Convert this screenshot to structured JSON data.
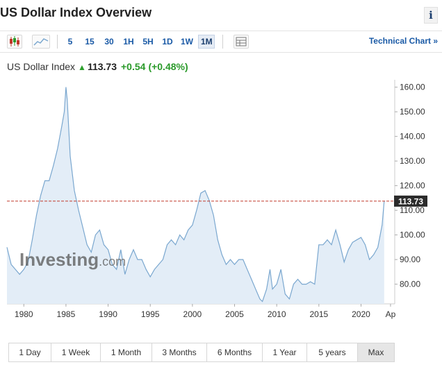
{
  "header": {
    "title": "US Dollar Index Overview",
    "info_label": "i"
  },
  "toolbar": {
    "intervals": [
      {
        "label": "5",
        "active": false
      },
      {
        "label": "15",
        "active": false
      },
      {
        "label": "30",
        "active": false
      },
      {
        "label": "1H",
        "active": false
      },
      {
        "label": "5H",
        "active": false
      },
      {
        "label": "1D",
        "active": false
      },
      {
        "label": "1W",
        "active": false
      },
      {
        "label": "1M",
        "active": true
      }
    ],
    "technical_chart": "Technical Chart »"
  },
  "quote": {
    "name": "US Dollar Index",
    "arrow": "▲",
    "last": "113.73",
    "change": "+0.54",
    "change_pct": "(+0.48%)"
  },
  "chart_data": {
    "type": "area",
    "watermark": "Investing.com",
    "x_ticks": [
      "1980",
      "1985",
      "1990",
      "1995",
      "2000",
      "2005",
      "2010",
      "2015",
      "2020",
      "Ap"
    ],
    "y_ticks": [
      "80.00",
      "90.00",
      "100.00",
      "110.00",
      "120.00",
      "130.00",
      "140.00",
      "150.00",
      "160.00"
    ],
    "xlim": [
      1978,
      2024
    ],
    "ylim": [
      72,
      163
    ],
    "last_price": 113.73,
    "last_price_label": "113.73",
    "colors": {
      "line": "#7aa7cf",
      "fill": "#e3edf7",
      "price_line": "#c0392b",
      "label_bg": "#2b2b2b"
    },
    "x": [
      1978.0,
      1978.5,
      1979.0,
      1979.5,
      1980.0,
      1980.5,
      1981.0,
      1981.5,
      1982.0,
      1982.5,
      1983.0,
      1983.5,
      1984.0,
      1984.5,
      1984.8,
      1985.0,
      1985.15,
      1985.5,
      1986.0,
      1986.5,
      1987.0,
      1987.5,
      1988.0,
      1988.5,
      1989.0,
      1989.5,
      1990.0,
      1990.5,
      1991.0,
      1991.5,
      1992.0,
      1992.5,
      1993.0,
      1993.5,
      1994.0,
      1994.5,
      1995.0,
      1995.5,
      1996.0,
      1996.5,
      1997.0,
      1997.5,
      1998.0,
      1998.5,
      1999.0,
      1999.5,
      2000.0,
      2000.5,
      2001.0,
      2001.5,
      2002.0,
      2002.5,
      2003.0,
      2003.5,
      2004.0,
      2004.5,
      2005.0,
      2005.5,
      2006.0,
      2006.5,
      2007.0,
      2007.5,
      2008.0,
      2008.3,
      2008.8,
      2009.2,
      2009.5,
      2010.0,
      2010.5,
      2011.0,
      2011.5,
      2012.0,
      2012.5,
      2013.0,
      2013.5,
      2014.0,
      2014.5,
      2015.0,
      2015.5,
      2016.0,
      2016.5,
      2017.0,
      2017.5,
      2018.0,
      2018.5,
      2019.0,
      2019.5,
      2020.0,
      2020.5,
      2021.0,
      2021.5,
      2022.0,
      2022.5,
      2022.75
    ],
    "y": [
      95,
      88,
      86,
      84,
      86,
      89,
      98,
      108,
      116,
      122,
      122,
      128,
      135,
      144,
      150,
      160,
      155,
      132,
      118,
      110,
      103,
      96,
      93,
      100,
      102,
      96,
      94,
      88,
      86,
      94,
      84,
      90,
      94,
      90,
      90,
      86,
      83,
      86,
      88,
      90,
      96,
      98,
      96,
      100,
      98,
      102,
      104,
      110,
      117,
      118,
      114,
      108,
      98,
      92,
      88,
      90,
      88,
      90,
      90,
      86,
      82,
      78,
      74,
      73,
      78,
      86,
      78,
      80,
      86,
      76,
      74,
      80,
      82,
      80,
      80,
      81,
      80,
      96,
      96,
      98,
      96,
      102,
      96,
      89,
      94,
      97,
      98,
      99,
      96,
      90,
      92,
      95,
      104,
      113.73
    ]
  },
  "ranges": [
    {
      "label": "1 Day",
      "active": false
    },
    {
      "label": "1 Week",
      "active": false
    },
    {
      "label": "1 Month",
      "active": false
    },
    {
      "label": "3 Months",
      "active": false
    },
    {
      "label": "6 Months",
      "active": false
    },
    {
      "label": "1 Year",
      "active": false
    },
    {
      "label": "5 years",
      "active": false
    },
    {
      "label": "Max",
      "active": true
    }
  ]
}
